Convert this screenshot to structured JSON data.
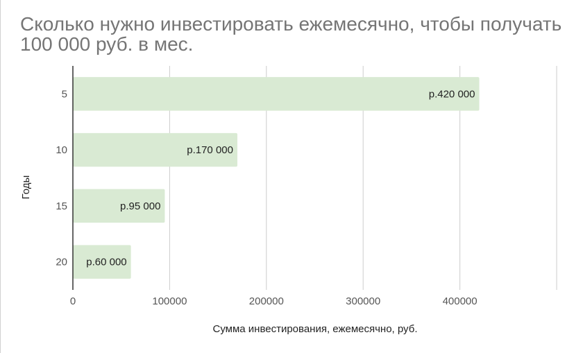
{
  "chart_data": {
    "type": "bar",
    "orientation": "horizontal",
    "title": "Сколько нужно инвестировать ежемесячно, чтобы получать 100 000 руб. в мес.",
    "xlabel": "Сумма инвестирования, ежемесячно, руб.",
    "ylabel": "Годы",
    "categories": [
      "5",
      "10",
      "15",
      "20"
    ],
    "values": [
      420000,
      170000,
      95000,
      60000
    ],
    "data_labels": [
      "р.420 000",
      "р.170 000",
      "р.95 000",
      "р.60 000"
    ],
    "xlim": [
      0,
      500000
    ],
    "x_ticks": [
      0,
      100000,
      200000,
      300000,
      400000
    ],
    "x_tick_labels": [
      "0",
      "100000",
      "200000",
      "300000",
      "400000"
    ],
    "grid": true,
    "legend": "none",
    "colors": {
      "bar": "#d9ead3",
      "axis": "#333333",
      "grid": "#cccccc",
      "title": "#757575",
      "text": "#222222",
      "tick": "#555555"
    }
  }
}
